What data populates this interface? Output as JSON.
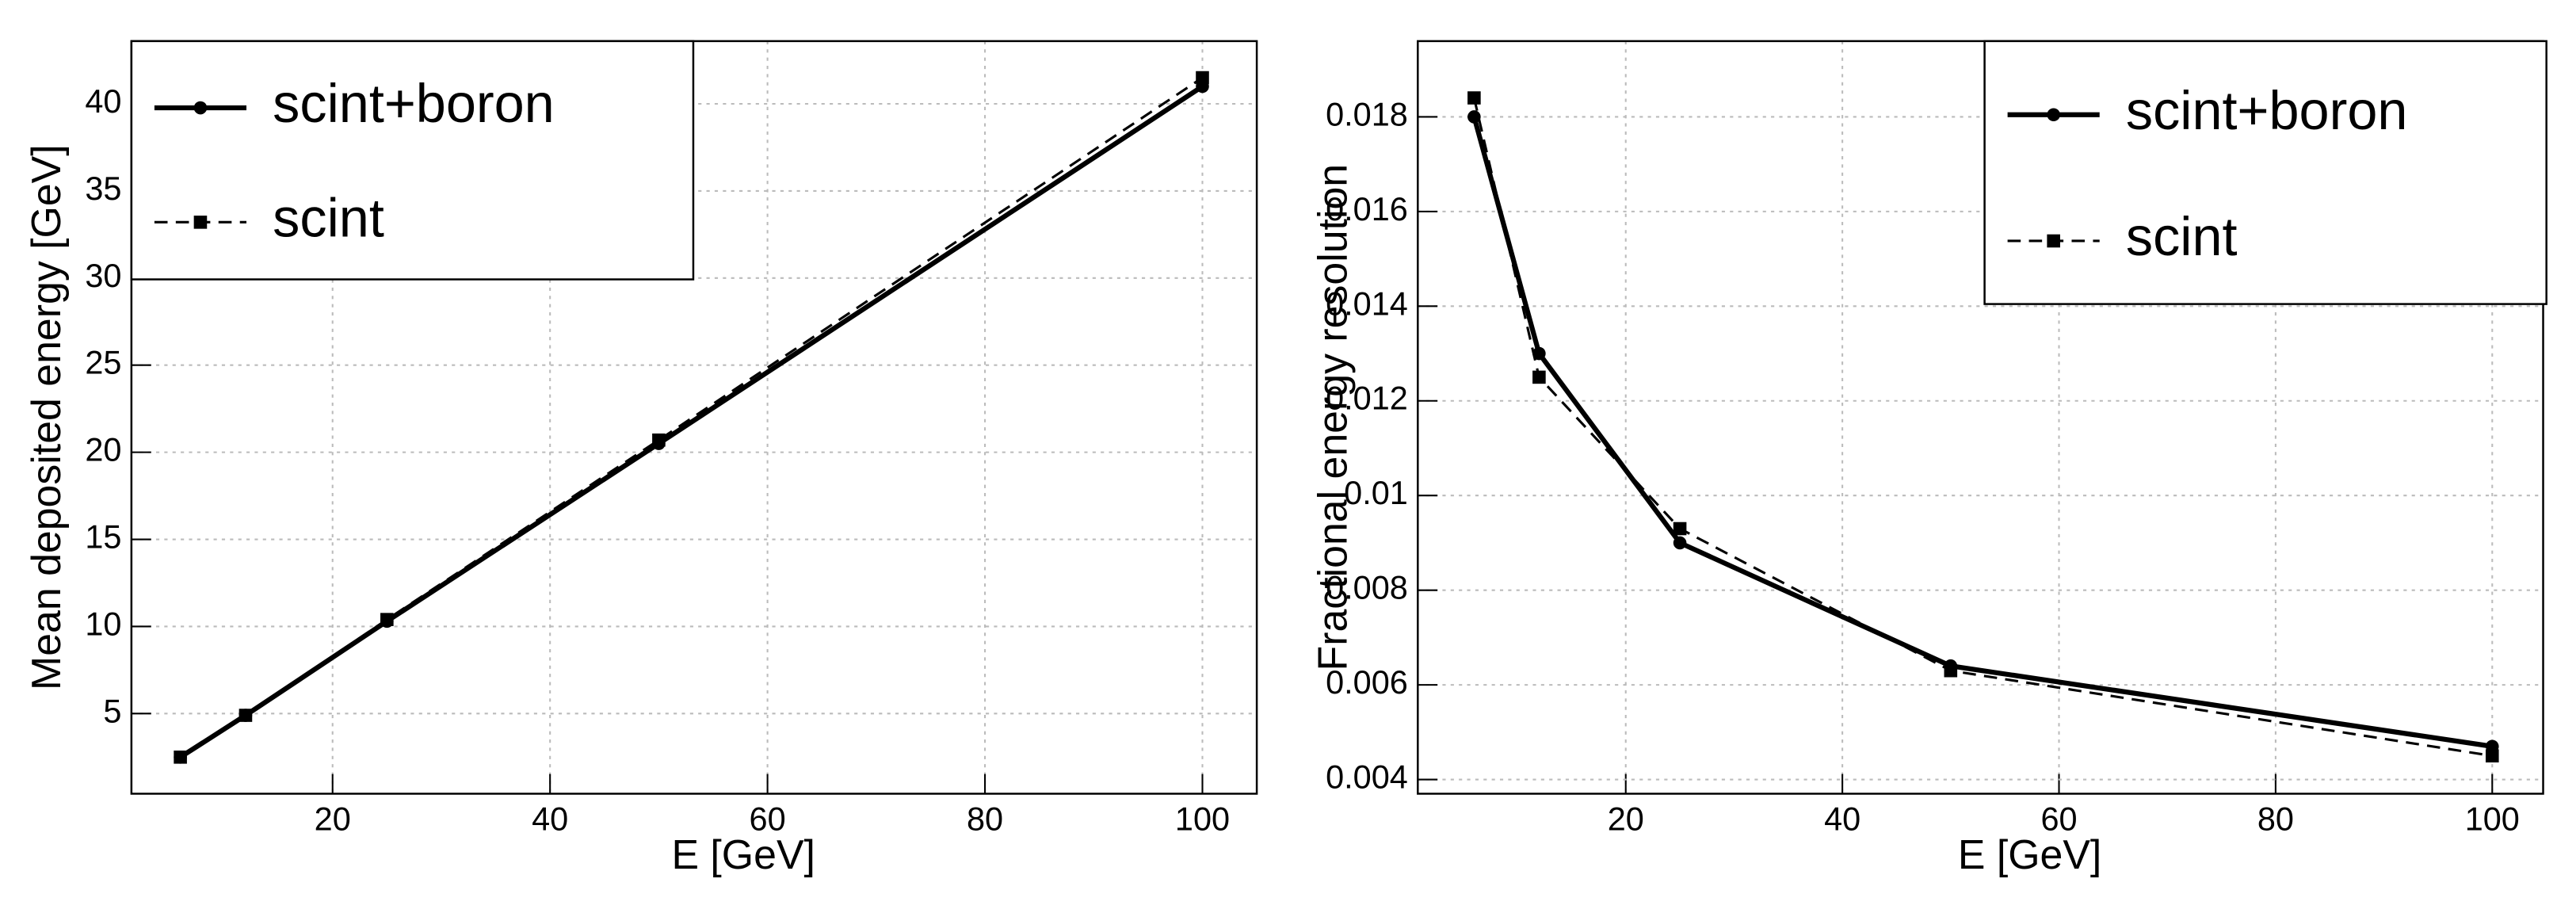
{
  "chart_data": [
    {
      "type": "line",
      "xlabel": "E [GeV]",
      "ylabel": "Mean deposited energy [GeV]",
      "x": [
        6,
        12,
        25,
        50,
        100
      ],
      "series": [
        {
          "name": "scint+boron",
          "color": "#000000",
          "linestyle": "solid",
          "marker": "circle",
          "values": [
            2.5,
            4.9,
            10.3,
            20.5,
            41.0
          ]
        },
        {
          "name": "scint",
          "color": "#000000",
          "linestyle": "dashed",
          "marker": "square",
          "values": [
            2.5,
            4.9,
            10.4,
            20.7,
            41.5
          ]
        }
      ],
      "xlim": [
        1.5,
        105
      ],
      "xticks": [
        20,
        40,
        60,
        80,
        100
      ],
      "ylim": [
        0.4,
        43.6
      ],
      "yticks": [
        5,
        10,
        15,
        20,
        25,
        30,
        35,
        40
      ],
      "grid": true,
      "legend": "upper left"
    },
    {
      "type": "line",
      "xlabel": "E [GeV]",
      "ylabel": "Fractional energy resolution",
      "x": [
        6,
        12,
        25,
        50,
        100
      ],
      "series": [
        {
          "name": "scint+boron",
          "color": "#000000",
          "linestyle": "solid",
          "marker": "circle",
          "values": [
            0.018,
            0.013,
            0.009,
            0.0064,
            0.0047
          ]
        },
        {
          "name": "scint",
          "color": "#000000",
          "linestyle": "dashed",
          "marker": "square",
          "values": [
            0.0184,
            0.0125,
            0.0093,
            0.0063,
            0.0045
          ]
        }
      ],
      "xlim": [
        0.8,
        104.7
      ],
      "xticks": [
        20,
        40,
        60,
        80,
        100
      ],
      "ylim": [
        0.0037,
        0.0196
      ],
      "yticks": [
        0.004,
        0.006,
        0.008,
        0.01,
        0.012,
        0.014,
        0.016,
        0.018
      ],
      "grid": true,
      "legend": "upper right"
    }
  ]
}
